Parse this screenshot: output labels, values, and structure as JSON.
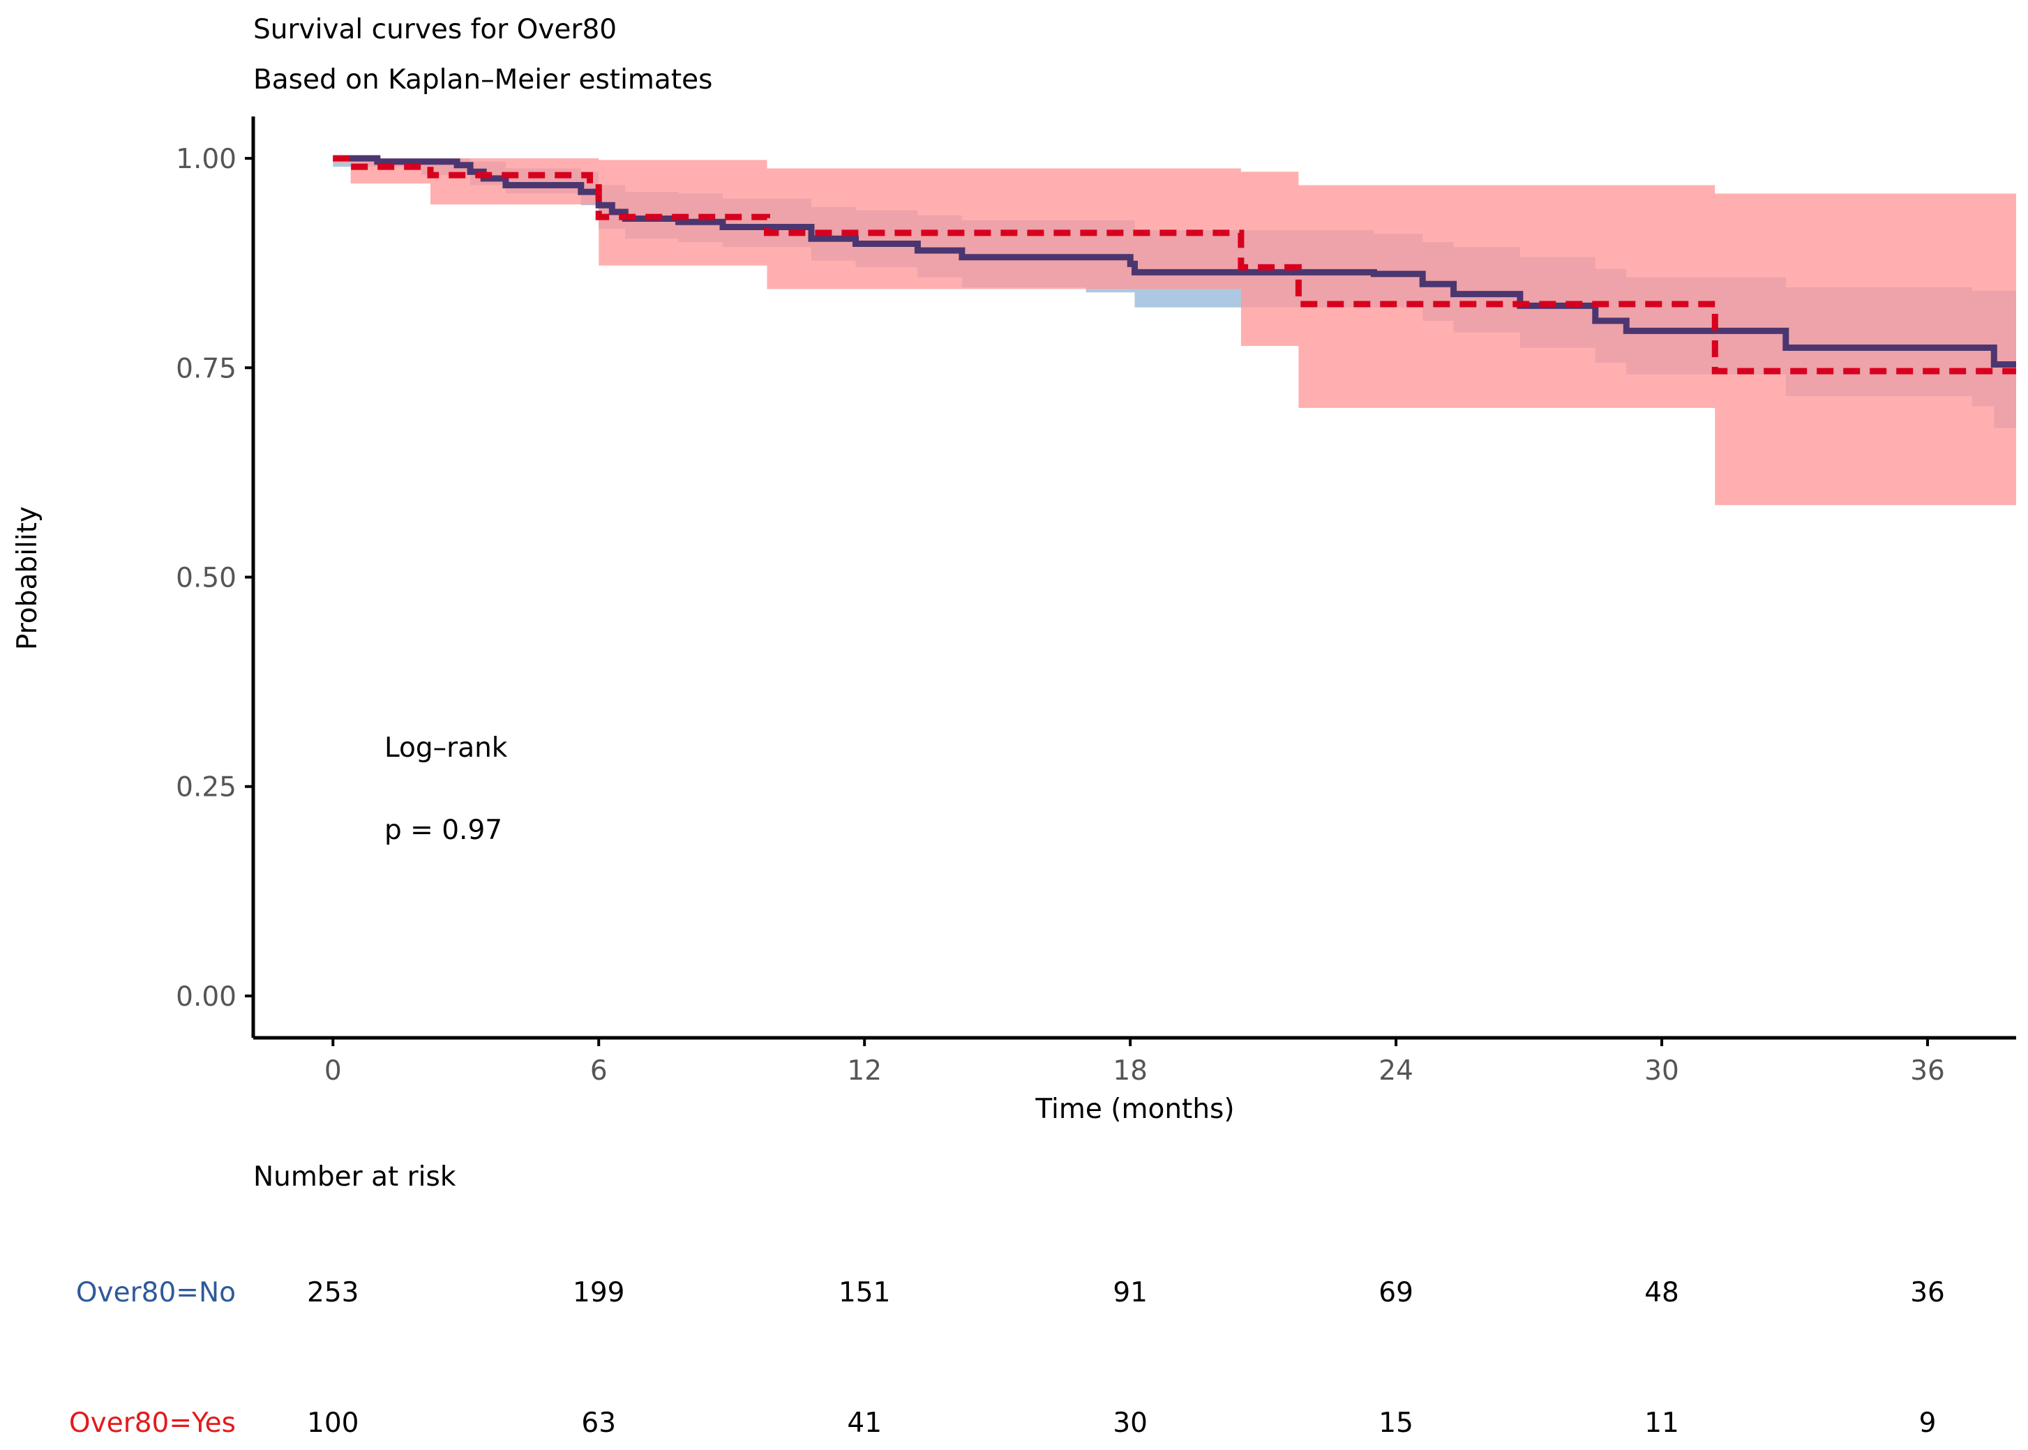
{
  "chart_data": {
    "type": "line",
    "subtype": "kaplan-meier step survival curves with confidence bands",
    "title": "Survival curves for Over80",
    "subtitle": "Based on Kaplan–Meier estimates",
    "xlabel": "Time (months)",
    "ylabel": "Probability",
    "xlim": [
      -1.8,
      38.0
    ],
    "ylim": [
      -0.05,
      1.05
    ],
    "x_ticks": [
      0,
      6,
      12,
      18,
      24,
      30,
      36
    ],
    "x_tick_labels": [
      "0",
      "6",
      "12",
      "18",
      "24",
      "30",
      "36"
    ],
    "y_ticks": [
      0,
      0.25,
      0.5,
      0.75,
      1.0
    ],
    "y_tick_labels": [
      "0.00",
      "0.25",
      "0.50",
      "0.75",
      "1.00"
    ],
    "grid": false,
    "legend": "none",
    "annotation": {
      "line1": "Log–rank",
      "line2": "p = 0.97"
    },
    "series": [
      {
        "name": "Over80=No",
        "color": "#2E5A9B",
        "line_color": "#4B3670",
        "line_style": "solid",
        "band_color": "#8AB0D4",
        "steps": [
          [
            0,
            1.0
          ],
          [
            1.0,
            0.996
          ],
          [
            2.8,
            0.992
          ],
          [
            3.1,
            0.984
          ],
          [
            3.4,
            0.976
          ],
          [
            3.9,
            0.968
          ],
          [
            5.6,
            0.96
          ],
          [
            6.0,
            0.944
          ],
          [
            6.3,
            0.936
          ],
          [
            6.6,
            0.928
          ],
          [
            7.8,
            0.924
          ],
          [
            8.8,
            0.918
          ],
          [
            10.8,
            0.904
          ],
          [
            11.8,
            0.898
          ],
          [
            13.2,
            0.89
          ],
          [
            14.2,
            0.882
          ],
          [
            18.0,
            0.874
          ],
          [
            18.1,
            0.864
          ],
          [
            23.5,
            0.862
          ],
          [
            24.6,
            0.85
          ],
          [
            25.3,
            0.838
          ],
          [
            26.8,
            0.824
          ],
          [
            28.5,
            0.806
          ],
          [
            29.2,
            0.794
          ],
          [
            32.8,
            0.774
          ],
          [
            37.5,
            0.754
          ],
          [
            38.0,
            0.754
          ]
        ],
        "lower": [
          [
            0,
            0.99
          ],
          [
            2.0,
            0.98
          ],
          [
            3.1,
            0.968
          ],
          [
            3.9,
            0.958
          ],
          [
            5.6,
            0.944
          ],
          [
            6.0,
            0.916
          ],
          [
            6.6,
            0.904
          ],
          [
            7.8,
            0.9
          ],
          [
            8.8,
            0.894
          ],
          [
            10.8,
            0.878
          ],
          [
            11.8,
            0.87
          ],
          [
            13.2,
            0.858
          ],
          [
            14.2,
            0.846
          ],
          [
            17.0,
            0.84
          ],
          [
            18.1,
            0.822
          ],
          [
            20.5,
            0.822
          ],
          [
            23.5,
            0.822
          ],
          [
            24.6,
            0.806
          ],
          [
            25.3,
            0.792
          ],
          [
            26.8,
            0.774
          ],
          [
            28.5,
            0.756
          ],
          [
            29.2,
            0.742
          ],
          [
            32.8,
            0.716
          ],
          [
            37.0,
            0.704
          ],
          [
            37.5,
            0.678
          ],
          [
            38.0,
            0.678
          ]
        ],
        "upper": [
          [
            0,
            1.0
          ],
          [
            3.1,
            0.996
          ],
          [
            3.9,
            0.988
          ],
          [
            5.6,
            0.984
          ],
          [
            6.0,
            0.968
          ],
          [
            6.6,
            0.96
          ],
          [
            7.8,
            0.958
          ],
          [
            8.8,
            0.952
          ],
          [
            10.8,
            0.942
          ],
          [
            11.8,
            0.938
          ],
          [
            13.2,
            0.932
          ],
          [
            14.2,
            0.926
          ],
          [
            18.1,
            0.914
          ],
          [
            23.5,
            0.91
          ],
          [
            24.6,
            0.9
          ],
          [
            25.3,
            0.894
          ],
          [
            26.8,
            0.882
          ],
          [
            28.5,
            0.868
          ],
          [
            29.2,
            0.858
          ],
          [
            32.8,
            0.846
          ],
          [
            37.0,
            0.842
          ],
          [
            37.5,
            0.842
          ],
          [
            38.0,
            0.842
          ]
        ]
      },
      {
        "name": "Over80=Yes",
        "color": "#E41A1C",
        "line_color": "#D7001E",
        "line_style": "dashed",
        "band_color": "#FF9999",
        "steps": [
          [
            0,
            1.0
          ],
          [
            0.4,
            0.99
          ],
          [
            2.2,
            0.98
          ],
          [
            5.8,
            0.97
          ],
          [
            6.0,
            0.93
          ],
          [
            9.8,
            0.911
          ],
          [
            20.5,
            0.87
          ],
          [
            21.8,
            0.826
          ],
          [
            31.2,
            0.746
          ],
          [
            38.0,
            0.746
          ]
        ],
        "lower": [
          [
            0,
            0.995
          ],
          [
            0.4,
            0.97
          ],
          [
            2.2,
            0.945
          ],
          [
            6.0,
            0.872
          ],
          [
            9.8,
            0.844
          ],
          [
            20.5,
            0.776
          ],
          [
            21.8,
            0.702
          ],
          [
            31.2,
            0.586
          ],
          [
            38.0,
            0.586
          ]
        ],
        "upper": [
          [
            0,
            1.0
          ],
          [
            5.8,
            1.0
          ],
          [
            6.0,
            0.998
          ],
          [
            9.8,
            0.988
          ],
          [
            20.5,
            0.984
          ],
          [
            21.8,
            0.968
          ],
          [
            31.2,
            0.958
          ],
          [
            38.0,
            0.958
          ]
        ]
      }
    ],
    "risk_table": {
      "title": "Number at risk",
      "times": [
        0,
        6,
        12,
        18,
        24,
        30,
        36
      ],
      "rows": [
        {
          "label": "Over80=No",
          "color": "#2E5A9B",
          "values": [
            "253",
            "199",
            "151",
            "91",
            "69",
            "48",
            "36"
          ]
        },
        {
          "label": "Over80=Yes",
          "color": "#E41A1C",
          "values": [
            "100",
            "63",
            "41",
            "30",
            "15",
            "11",
            "9"
          ]
        }
      ]
    }
  }
}
